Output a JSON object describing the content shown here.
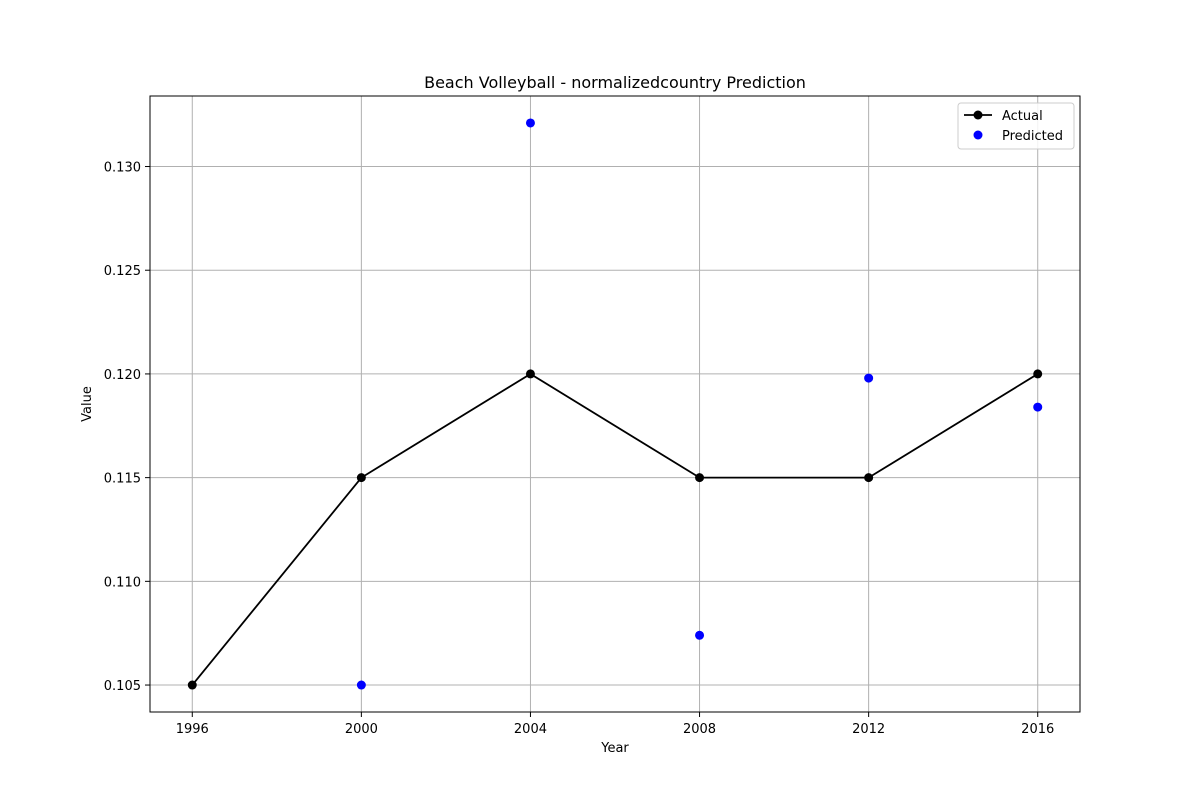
{
  "chart_data": {
    "type": "line",
    "title": "Beach Volleyball - normalizedcountry Prediction",
    "xlabel": "Year",
    "ylabel": "Value",
    "x": [
      1996,
      2000,
      2004,
      2008,
      2012,
      2016
    ],
    "xticks": [
      1996,
      2000,
      2004,
      2008,
      2012,
      2016
    ],
    "yticks": [
      0.105,
      0.11,
      0.115,
      0.12,
      0.125,
      0.13
    ],
    "ytick_labels": [
      "0.105",
      "0.110",
      "0.115",
      "0.120",
      "0.125",
      "0.130"
    ],
    "xlim": [
      1995.0,
      2017.0
    ],
    "ylim": [
      0.1037,
      0.1334
    ],
    "grid": true,
    "legend_position": "top-right",
    "series": [
      {
        "name": "Actual",
        "kind": "line-marker",
        "color": "#000000",
        "x": [
          1996,
          2000,
          2004,
          2008,
          2012,
          2016
        ],
        "values": [
          0.105,
          0.115,
          0.12,
          0.115,
          0.115,
          0.12
        ]
      },
      {
        "name": "Predicted",
        "kind": "scatter",
        "color": "#0000ff",
        "x": [
          2000,
          2004,
          2008,
          2012,
          2016
        ],
        "values": [
          0.105,
          0.1321,
          0.1074,
          0.1198,
          0.1184
        ]
      }
    ]
  }
}
